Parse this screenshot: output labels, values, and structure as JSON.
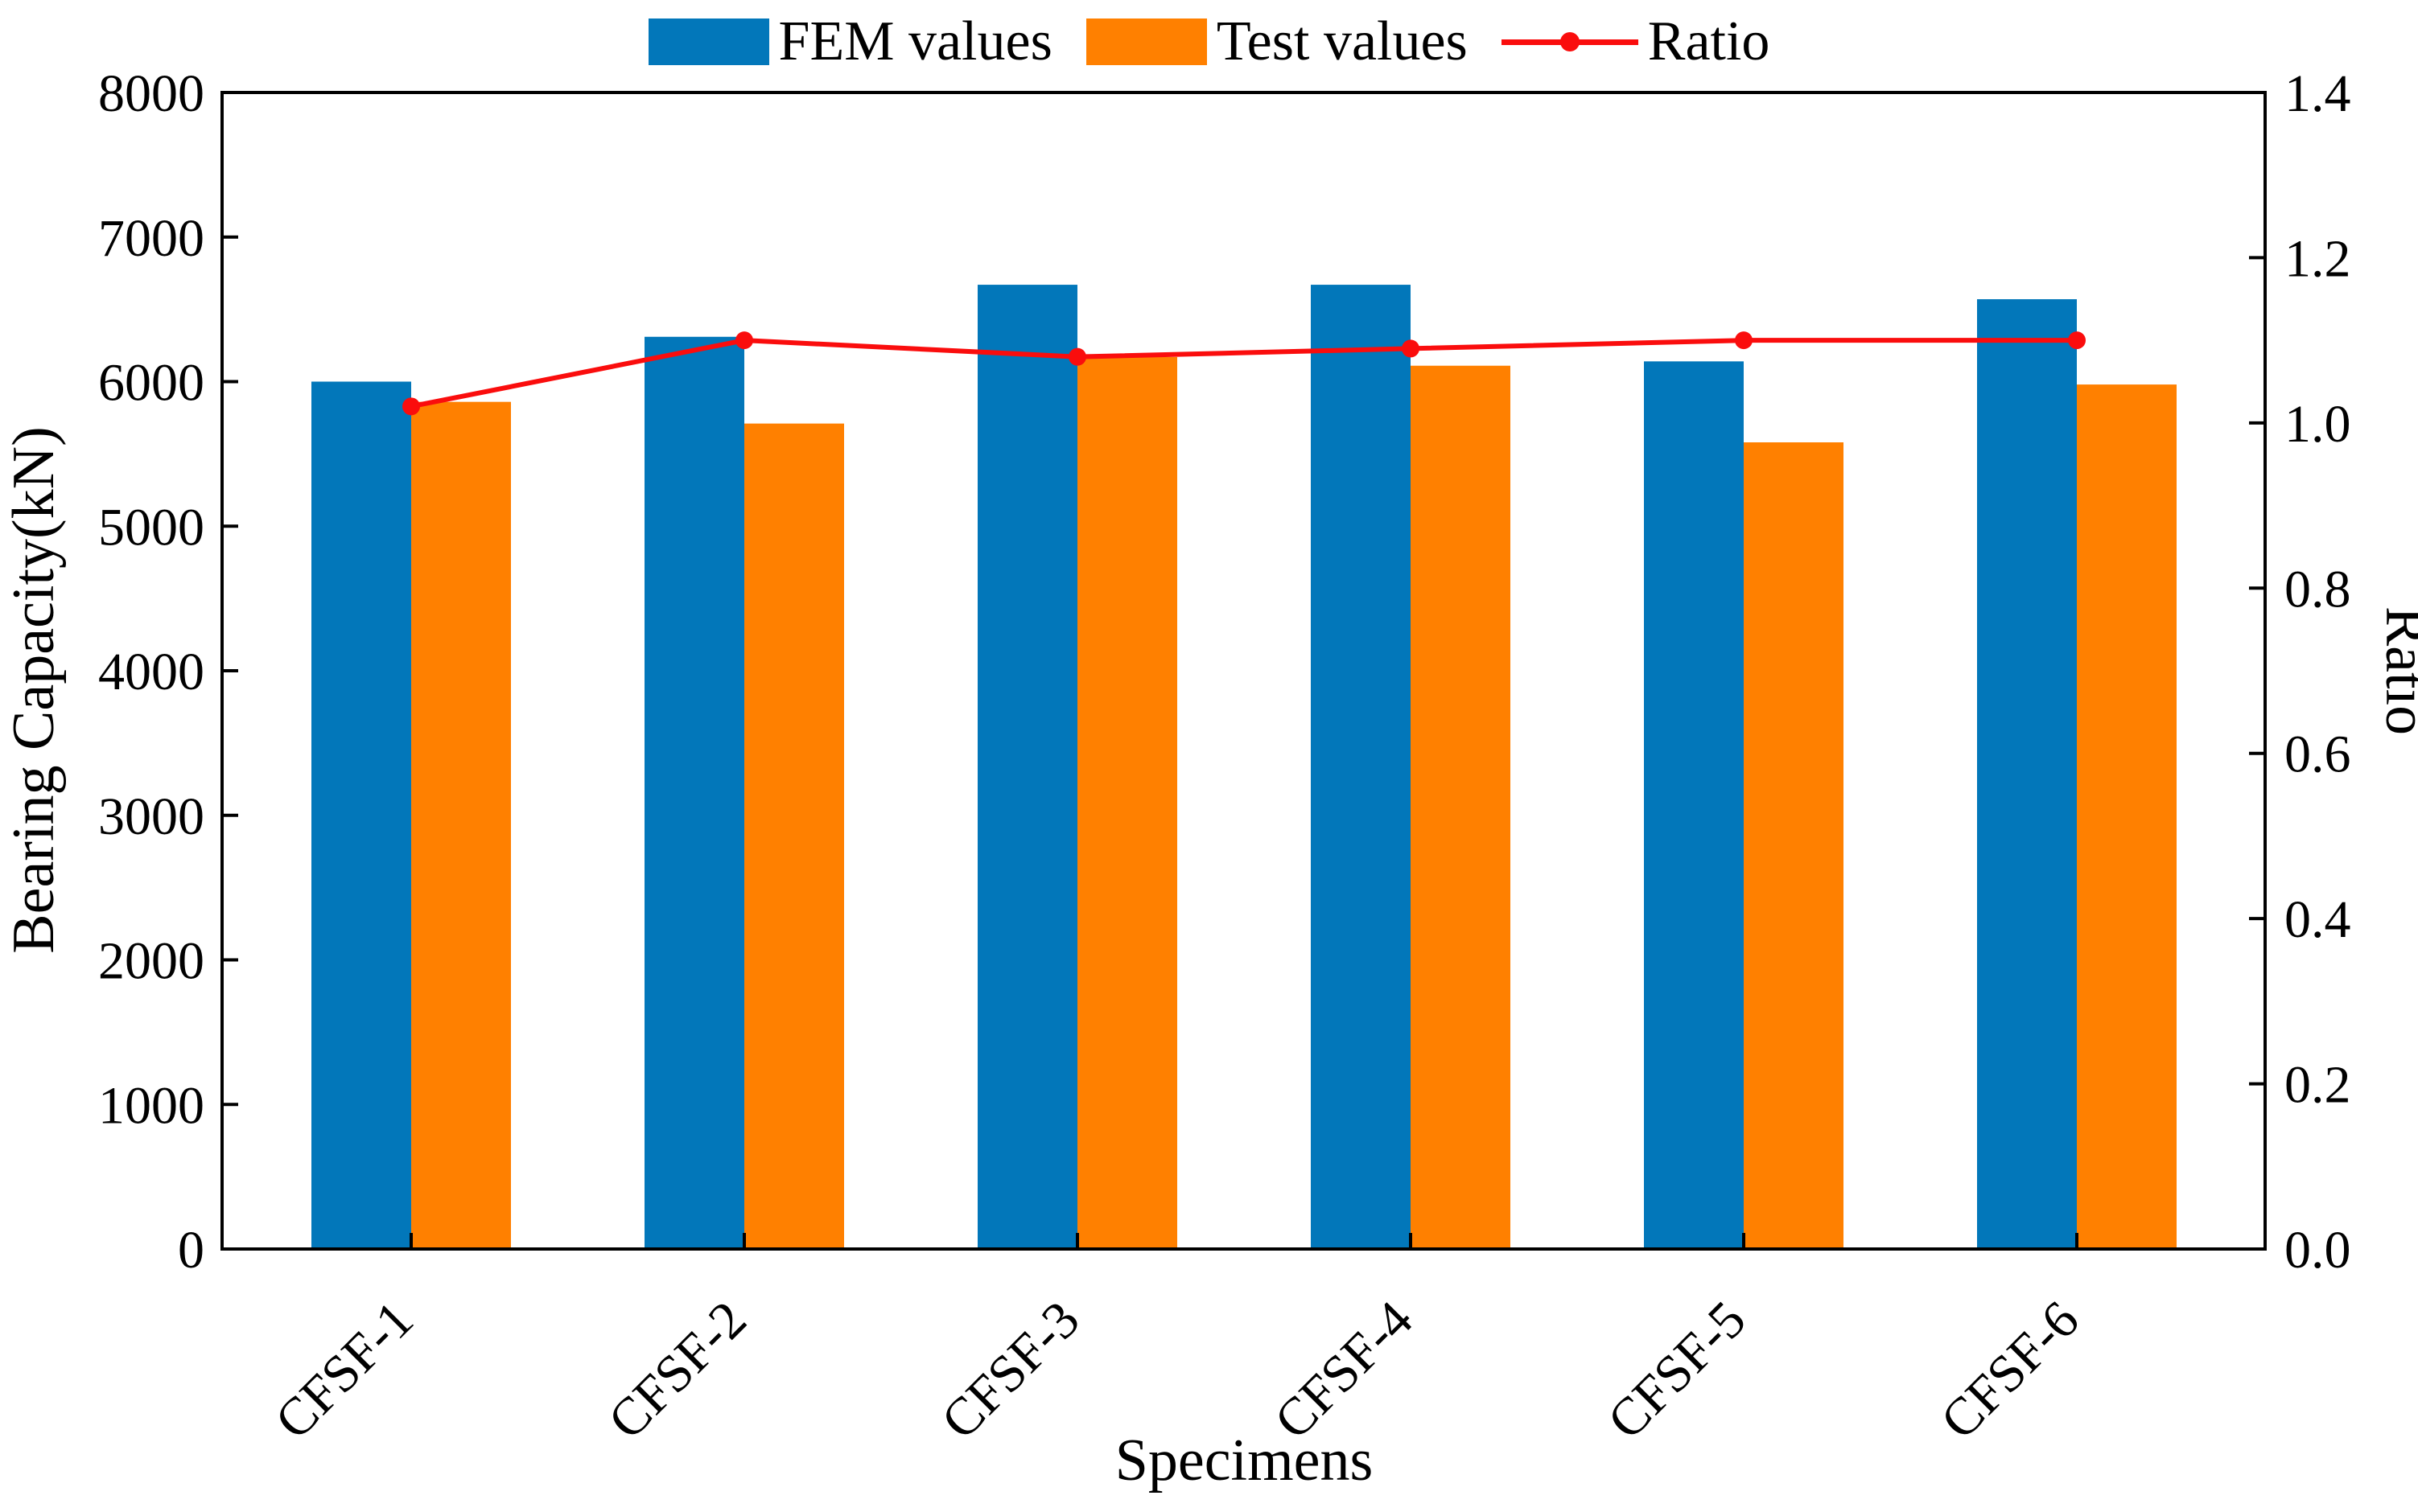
{
  "chart_data": {
    "type": "bar",
    "title": "",
    "categories": [
      "CFSF-1",
      "CFSF-2",
      "CFSF-3",
      "CFSF-4",
      "CFSF-5",
      "CFSF-6"
    ],
    "series": [
      {
        "name": "FEM values",
        "kind": "bar",
        "axis": "left",
        "color": "#0277ba",
        "values": [
          6000,
          6310,
          6670,
          6670,
          6140,
          6570
        ]
      },
      {
        "name": "Test values",
        "kind": "bar",
        "axis": "left",
        "color": "#ff8000",
        "values": [
          5860,
          5710,
          6170,
          6110,
          5580,
          5980
        ]
      },
      {
        "name": "Ratio",
        "kind": "line",
        "axis": "right",
        "color": "#fa0d0d",
        "marker": "circle",
        "values": [
          1.02,
          1.1,
          1.08,
          1.09,
          1.1,
          1.1
        ]
      }
    ],
    "xlabel": "Specimens",
    "ylabel_left": "Bearing Capacity(kN)",
    "ylabel_right": "Ratio",
    "ylim_left": [
      0,
      8000
    ],
    "ylim_right": [
      0,
      1.4
    ],
    "yticks_left": [
      "0",
      "1000",
      "2000",
      "3000",
      "4000",
      "5000",
      "6000",
      "7000",
      "8000"
    ],
    "yticks_right": [
      "0.0",
      "0.2",
      "0.4",
      "0.6",
      "0.8",
      "1.0",
      "1.2",
      "1.4"
    ],
    "legend_position": "top",
    "grid": false,
    "axis_color": "#000000",
    "text_color": "#000000"
  }
}
